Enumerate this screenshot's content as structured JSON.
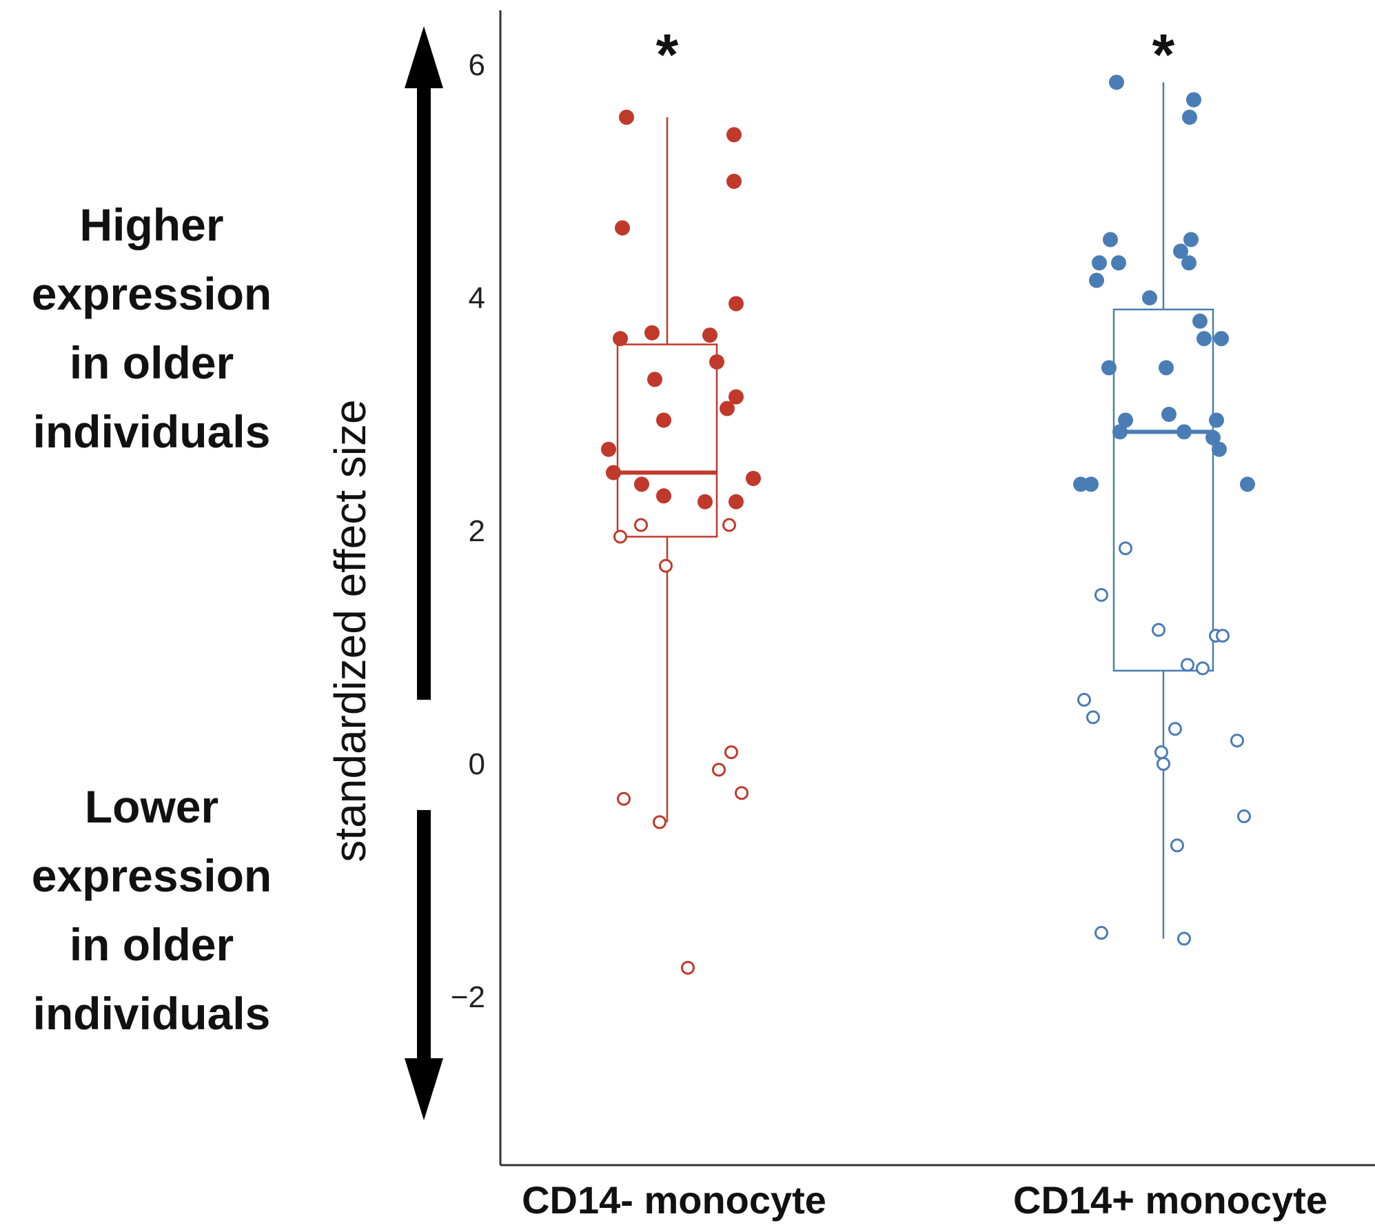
{
  "chart_data": {
    "type": "box",
    "ylabel": "standardized effect size",
    "ylim": [
      -3.2,
      6.7
    ],
    "yticks": [
      6,
      4,
      2,
      0,
      -2
    ],
    "ytick_labels": [
      "6",
      "4",
      "2",
      "0",
      "−2"
    ],
    "side_labels": {
      "higher": "Higher\nexpression\nin older\nindividuals",
      "lower": "Lower\nexpression\nin older\nindividuals"
    },
    "series": [
      {
        "name": "CD14- monocyte",
        "color": "#c0392b",
        "significance": "*",
        "box": {
          "min": -0.5,
          "q1": 1.95,
          "median": 2.5,
          "q3": 3.6,
          "max": 5.55
        },
        "points": [
          {
            "j": -0.59,
            "y": 5.55,
            "filled": true
          },
          {
            "j": 0.97,
            "y": 5.4,
            "filled": true
          },
          {
            "j": 0.97,
            "y": 5.0,
            "filled": true
          },
          {
            "j": -0.65,
            "y": 4.6,
            "filled": true
          },
          {
            "j": 1.0,
            "y": 3.95,
            "filled": true
          },
          {
            "j": -0.22,
            "y": 3.7,
            "filled": true
          },
          {
            "j": 0.62,
            "y": 3.68,
            "filled": true
          },
          {
            "j": -0.68,
            "y": 3.65,
            "filled": true
          },
          {
            "j": 0.72,
            "y": 3.45,
            "filled": true
          },
          {
            "j": -0.18,
            "y": 3.3,
            "filled": true
          },
          {
            "j": 1.0,
            "y": 3.15,
            "filled": true
          },
          {
            "j": 0.87,
            "y": 3.05,
            "filled": true
          },
          {
            "j": -0.05,
            "y": 2.95,
            "filled": true
          },
          {
            "j": -0.85,
            "y": 2.7,
            "filled": true
          },
          {
            "j": -0.78,
            "y": 2.5,
            "filled": true
          },
          {
            "j": 1.25,
            "y": 2.45,
            "filled": true
          },
          {
            "j": -0.37,
            "y": 2.4,
            "filled": true
          },
          {
            "j": -0.05,
            "y": 2.3,
            "filled": true
          },
          {
            "j": 0.55,
            "y": 2.25,
            "filled": true
          },
          {
            "j": 1.0,
            "y": 2.25,
            "filled": true
          },
          {
            "j": -0.38,
            "y": 2.05,
            "filled": false
          },
          {
            "j": 0.9,
            "y": 2.05,
            "filled": false
          },
          {
            "j": -0.68,
            "y": 1.95,
            "filled": false
          },
          {
            "j": -0.02,
            "y": 1.7,
            "filled": false
          },
          {
            "j": 0.93,
            "y": 0.1,
            "filled": false
          },
          {
            "j": 0.75,
            "y": -0.05,
            "filled": false
          },
          {
            "j": -0.63,
            "y": -0.3,
            "filled": false
          },
          {
            "j": 1.08,
            "y": -0.25,
            "filled": false
          },
          {
            "j": -0.11,
            "y": -0.5,
            "filled": false
          },
          {
            "j": 0.3,
            "y": -1.75,
            "filled": false
          }
        ]
      },
      {
        "name": "CD14+ monocyte",
        "color": "#4a7db5",
        "significance": "*",
        "box": {
          "min": -1.5,
          "q1": 0.8,
          "median": 2.85,
          "q3": 3.9,
          "max": 5.85
        },
        "points": [
          {
            "j": -0.68,
            "y": 5.85,
            "filled": true
          },
          {
            "j": 0.44,
            "y": 5.7,
            "filled": true
          },
          {
            "j": 0.38,
            "y": 5.55,
            "filled": true
          },
          {
            "j": -0.77,
            "y": 4.5,
            "filled": true
          },
          {
            "j": 0.4,
            "y": 4.5,
            "filled": true
          },
          {
            "j": 0.25,
            "y": 4.4,
            "filled": true
          },
          {
            "j": -0.93,
            "y": 4.3,
            "filled": true
          },
          {
            "j": -0.65,
            "y": 4.3,
            "filled": true
          },
          {
            "j": 0.37,
            "y": 4.3,
            "filled": true
          },
          {
            "j": -0.97,
            "y": 4.15,
            "filled": true
          },
          {
            "j": -0.2,
            "y": 4.0,
            "filled": true
          },
          {
            "j": 0.53,
            "y": 3.8,
            "filled": true
          },
          {
            "j": 0.59,
            "y": 3.65,
            "filled": true
          },
          {
            "j": 0.84,
            "y": 3.65,
            "filled": true
          },
          {
            "j": -0.79,
            "y": 3.4,
            "filled": true
          },
          {
            "j": 0.04,
            "y": 3.4,
            "filled": true
          },
          {
            "j": 0.08,
            "y": 3.0,
            "filled": true
          },
          {
            "j": -0.55,
            "y": 2.95,
            "filled": true
          },
          {
            "j": 0.77,
            "y": 2.95,
            "filled": true
          },
          {
            "j": -0.63,
            "y": 2.85,
            "filled": true
          },
          {
            "j": 0.3,
            "y": 2.85,
            "filled": true
          },
          {
            "j": 0.72,
            "y": 2.8,
            "filled": true
          },
          {
            "j": 0.81,
            "y": 2.7,
            "filled": true
          },
          {
            "j": -1.2,
            "y": 2.4,
            "filled": true
          },
          {
            "j": -1.05,
            "y": 2.4,
            "filled": true
          },
          {
            "j": 1.22,
            "y": 2.4,
            "filled": true
          },
          {
            "j": -0.55,
            "y": 1.85,
            "filled": false
          },
          {
            "j": -0.9,
            "y": 1.45,
            "filled": false
          },
          {
            "j": -0.07,
            "y": 1.15,
            "filled": false
          },
          {
            "j": 0.76,
            "y": 1.1,
            "filled": false
          },
          {
            "j": 0.86,
            "y": 1.1,
            "filled": false
          },
          {
            "j": 0.35,
            "y": 0.85,
            "filled": false
          },
          {
            "j": 0.57,
            "y": 0.82,
            "filled": false
          },
          {
            "j": -1.15,
            "y": 0.55,
            "filled": false
          },
          {
            "j": -1.02,
            "y": 0.4,
            "filled": false
          },
          {
            "j": 0.17,
            "y": 0.3,
            "filled": false
          },
          {
            "j": 1.07,
            "y": 0.2,
            "filled": false
          },
          {
            "j": -0.03,
            "y": 0.1,
            "filled": false
          },
          {
            "j": 0.0,
            "y": 0.0,
            "filled": false
          },
          {
            "j": 1.17,
            "y": -0.45,
            "filled": false
          },
          {
            "j": 0.2,
            "y": -0.7,
            "filled": false
          },
          {
            "j": -0.9,
            "y": -1.45,
            "filled": false
          },
          {
            "j": 0.3,
            "y": -1.5,
            "filled": false
          }
        ]
      }
    ]
  }
}
